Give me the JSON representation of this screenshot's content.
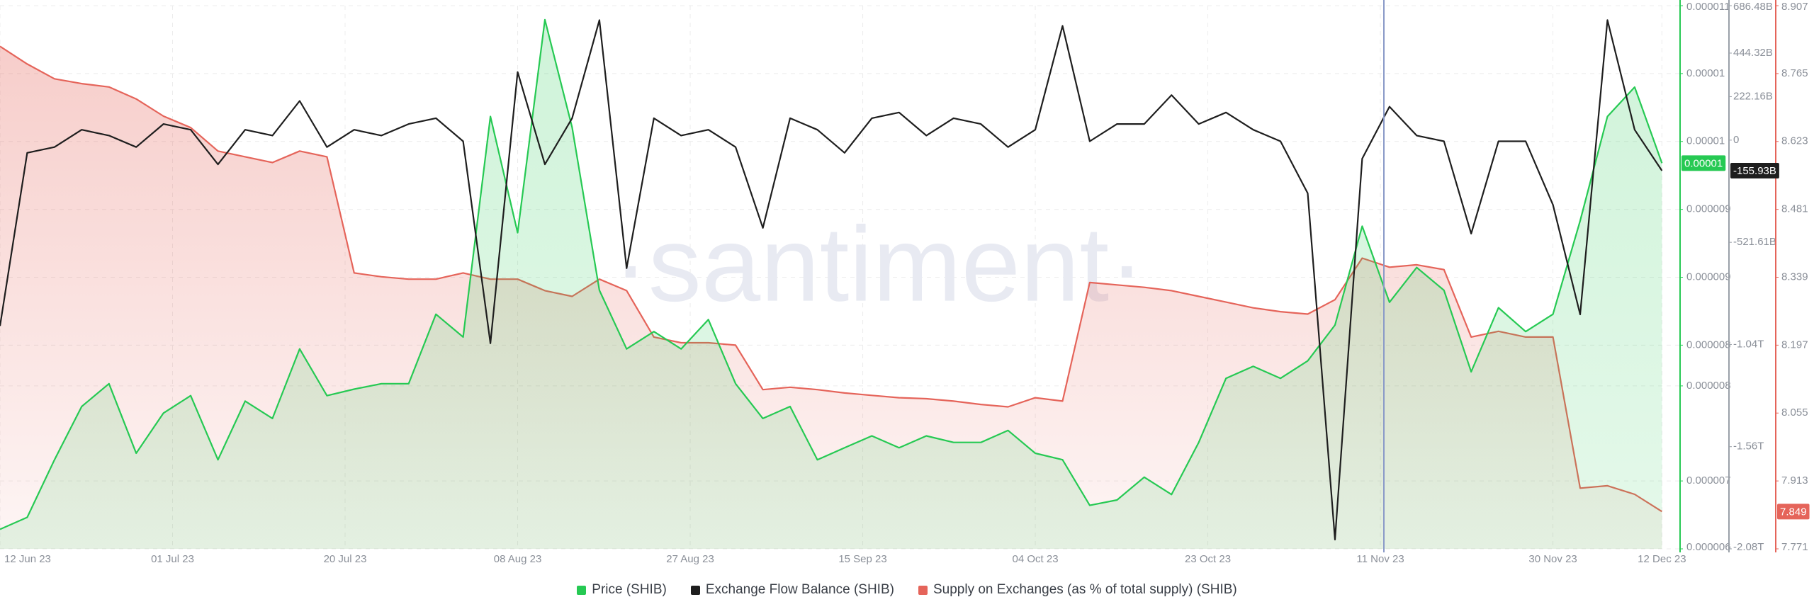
{
  "chart_data": {
    "type": "line",
    "watermark": "·santiment·",
    "grid": true,
    "x": [
      "2023-06-12",
      "2023-06-15",
      "2023-06-18",
      "2023-06-21",
      "2023-06-24",
      "2023-06-27",
      "2023-06-30",
      "2023-07-03",
      "2023-07-06",
      "2023-07-09",
      "2023-07-12",
      "2023-07-15",
      "2023-07-18",
      "2023-07-21",
      "2023-07-24",
      "2023-07-27",
      "2023-07-30",
      "2023-08-02",
      "2023-08-05",
      "2023-08-08",
      "2023-08-11",
      "2023-08-14",
      "2023-08-17",
      "2023-08-20",
      "2023-08-23",
      "2023-08-26",
      "2023-08-29",
      "2023-09-01",
      "2023-09-04",
      "2023-09-07",
      "2023-09-10",
      "2023-09-13",
      "2023-09-16",
      "2023-09-19",
      "2023-09-22",
      "2023-09-25",
      "2023-09-28",
      "2023-10-01",
      "2023-10-04",
      "2023-10-07",
      "2023-10-10",
      "2023-10-13",
      "2023-10-16",
      "2023-10-19",
      "2023-10-22",
      "2023-10-25",
      "2023-10-28",
      "2023-10-31",
      "2023-11-03",
      "2023-11-06",
      "2023-11-09",
      "2023-11-12",
      "2023-11-15",
      "2023-11-18",
      "2023-11-21",
      "2023-11-24",
      "2023-11-27",
      "2023-11-30",
      "2023-12-03",
      "2023-12-06",
      "2023-12-09",
      "2023-12-12"
    ],
    "xlim": [
      "2023-06-12",
      "2023-12-14"
    ],
    "xticks": [
      {
        "value": "2023-06-12",
        "label": "12 Jun 23"
      },
      {
        "value": "2023-07-01",
        "label": "01 Jul 23"
      },
      {
        "value": "2023-07-20",
        "label": "20 Jul 23"
      },
      {
        "value": "2023-08-08",
        "label": "08 Aug 23"
      },
      {
        "value": "2023-08-27",
        "label": "27 Aug 23"
      },
      {
        "value": "2023-09-15",
        "label": "15 Sep 23"
      },
      {
        "value": "2023-10-04",
        "label": "04 Oct 23"
      },
      {
        "value": "2023-10-23",
        "label": "23 Oct 23"
      },
      {
        "value": "2023-11-11",
        "label": "11 Nov 23"
      },
      {
        "value": "2023-11-30",
        "label": "30 Nov 23"
      },
      {
        "value": "2023-12-12",
        "label": "12 Dec 23"
      }
    ],
    "series": [
      {
        "name": "Price (SHIB)",
        "color": "#26c953",
        "axis": "y",
        "fill": true,
        "last_value_label": "0.00001",
        "values": [
          6.18e-06,
          6.29e-06,
          6.82e-06,
          7.31e-06,
          7.52e-06,
          6.88e-06,
          7.25e-06,
          7.41e-06,
          6.82e-06,
          7.36e-06,
          7.2e-06,
          7.84e-06,
          7.41e-06,
          7.47e-06,
          7.52e-06,
          7.52e-06,
          8.16e-06,
          7.95e-06,
          9.98e-06,
          8.91e-06,
          1.087e-05,
          9.88e-06,
          8.38e-06,
          7.84e-06,
          8e-06,
          7.84e-06,
          8.11e-06,
          7.52e-06,
          7.2e-06,
          7.31e-06,
          6.82e-06,
          6.93e-06,
          7.04e-06,
          6.93e-06,
          7.04e-06,
          6.98e-06,
          6.98e-06,
          7.09e-06,
          6.88e-06,
          6.82e-06,
          6.4e-06,
          6.45e-06,
          6.66e-06,
          6.5e-06,
          6.98e-06,
          7.57e-06,
          7.68e-06,
          7.57e-06,
          7.73e-06,
          8.06e-06,
          8.97e-06,
          8.27e-06,
          8.59e-06,
          8.38e-06,
          7.63e-06,
          8.22e-06,
          8e-06,
          8.16e-06,
          9.02e-06,
          9.98e-06,
          1.025e-05,
          9.55e-06
        ]
      },
      {
        "name": "Exchange Flow Balance (SHIB)",
        "color": "#1e1e1e",
        "axis": "y2",
        "fill": false,
        "last_value_label": "-155.93B",
        "values": [
          -948800000000.0,
          -64800000000.0,
          -35400000000.0,
          53000000000.0,
          23600000000.0,
          -35400000000.0,
          82500000000.0,
          53000000000.0,
          -123800000000.0,
          53000000000.0,
          23600000000.0,
          200400000000.0,
          -35400000000.0,
          53000000000.0,
          23600000000.0,
          82500000000.0,
          112000000000.0,
          -5900000000.0,
          -1037200000000.0,
          347700000000.0,
          -123800000000.0,
          112000000000.0,
          612900000000.0,
          -654100000000.0,
          112000000000.0,
          23600000000.0,
          53000000000.0,
          -35400000000.0,
          -447900000000.0,
          112000000000.0,
          53000000000.0,
          -64800000000.0,
          112000000000.0,
          141400000000.0,
          23600000000.0,
          112000000000.0,
          82500000000.0,
          -35400000000.0,
          53000000000.0,
          583400000000.0,
          -5900000000.0,
          82500000000.0,
          82500000000.0,
          229800000000.0,
          82500000000.0,
          141400000000.0,
          53000000000.0,
          -5900000000.0,
          -271100000000.0,
          -2039000000000.0,
          -94300000000.0,
          170900000000.0,
          23600000000.0,
          -5900000000.0,
          -477300000000.0,
          -5900000000.0,
          -5900000000.0,
          -330000000000.0,
          -889800000000.0,
          612900000000.0,
          53000000000.0,
          -155930000000.0
        ]
      },
      {
        "name": "Supply on Exchanges (as % of total supply) (SHIB)",
        "color": "#e5645a",
        "axis": "y3",
        "fill": true,
        "last_value_label": "7.849",
        "values": [
          8.822,
          8.785,
          8.754,
          8.744,
          8.737,
          8.712,
          8.676,
          8.652,
          8.603,
          8.591,
          8.579,
          8.603,
          8.591,
          8.348,
          8.34,
          8.335,
          8.335,
          8.348,
          8.335,
          8.335,
          8.311,
          8.299,
          8.335,
          8.311,
          8.214,
          8.202,
          8.202,
          8.197,
          8.104,
          8.109,
          8.104,
          8.097,
          8.092,
          8.087,
          8.085,
          8.08,
          8.073,
          8.068,
          8.087,
          8.08,
          8.328,
          8.323,
          8.318,
          8.311,
          8.299,
          8.287,
          8.275,
          8.267,
          8.262,
          8.292,
          8.379,
          8.36,
          8.365,
          8.355,
          8.214,
          8.226,
          8.214,
          8.214,
          7.898,
          7.903,
          7.885,
          7.849
        ]
      }
    ],
    "ylim": [
      6e-06,
      1.1e-05
    ],
    "yticks": [
      6e-06,
      {
        "value": 6.625e-06,
        "label": "0.000007"
      },
      {
        "value": 7.5e-06,
        "label": "0.000008"
      },
      {
        "value": 7.875e-06,
        "label": "0.000008"
      },
      {
        "value": 8.5e-06,
        "label": "0.000009"
      },
      {
        "value": 9.125e-06,
        "label": "0.000009"
      },
      {
        "value": 9.75e-06,
        "label": "0.00001"
      },
      {
        "value": 1.0375e-05,
        "label": "0.00001"
      },
      1.1e-05
    ],
    "y2lim": [
      -2086440000000.0,
      686480000000.0
    ],
    "y2ticks": [
      {
        "value": -2086440000000.0,
        "label": "-2.08T"
      },
      {
        "value": -1564830000000.0,
        "label": "-1.56T"
      },
      {
        "value": -1043220000000.0,
        "label": "-1.04T"
      },
      {
        "value": -521610000000.0,
        "label": "-521.61B"
      },
      0,
      {
        "value": 222160000000.0,
        "label": "222.16B"
      },
      {
        "value": 444320000000.0,
        "label": "444.32B"
      },
      {
        "value": 686480000000.0,
        "label": "686.48B"
      }
    ],
    "y3lim": [
      7.771,
      8.907
    ],
    "y3ticks": [
      7.771,
      7.913,
      8.055,
      8.197,
      8.339,
      8.481,
      8.623,
      8.765,
      8.907
    ]
  }
}
